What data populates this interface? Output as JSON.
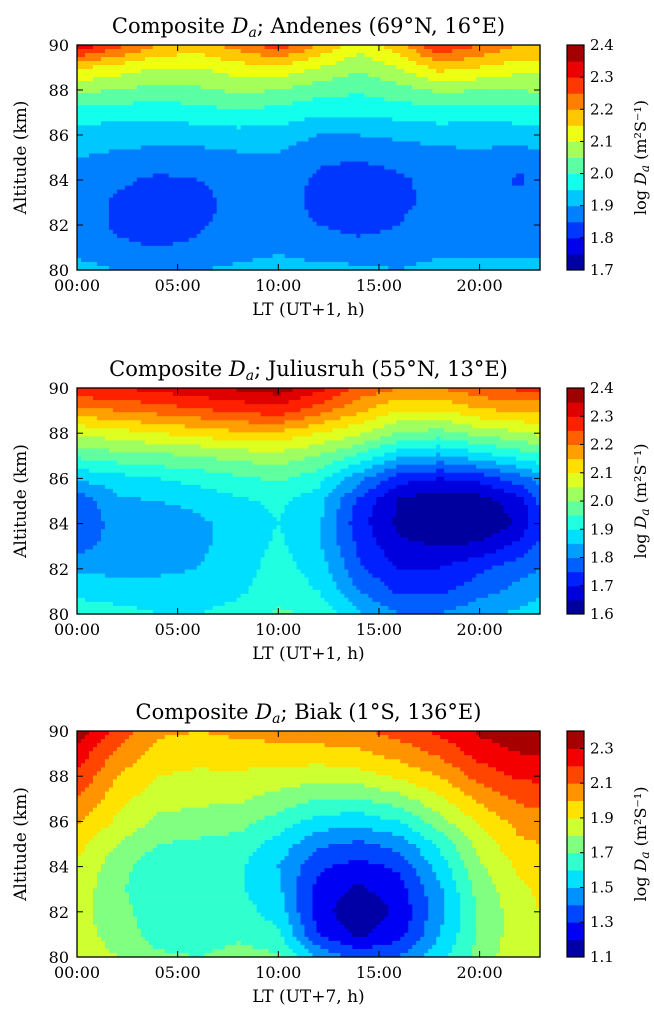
{
  "chart_data": [
    {
      "type": "heatmap",
      "title_prefix": "Composite ",
      "title_var": "D",
      "title_var_sub": "a",
      "title_suffix": "; Andenes (69°N, 16°E)",
      "xlabel": "LT (UT+1, h)",
      "ylabel": "Altitude (km)",
      "xlim": [
        0,
        23
      ],
      "ylim": [
        80,
        90
      ],
      "x_ticks": [
        0,
        5,
        10,
        15,
        20
      ],
      "x_tick_labels": [
        "00:00",
        "05:00",
        "10:00",
        "15:00",
        "20:00"
      ],
      "y_ticks": [
        80,
        82,
        84,
        86,
        88,
        90
      ],
      "colorbar": {
        "label_prefix": "log ",
        "label_var": "D",
        "label_var_sub": "a",
        "label_units": " (m²S⁻¹)",
        "min": 1.7,
        "max": 2.4,
        "ticks": [
          1.7,
          1.8,
          1.9,
          2.0,
          2.1,
          2.2,
          2.3,
          2.4
        ],
        "levels": 14
      },
      "grid_x": [
        0,
        2,
        4,
        6,
        8,
        10,
        12,
        14,
        16,
        18,
        20,
        22,
        23
      ],
      "grid_y": [
        80,
        81,
        82,
        83,
        84,
        85,
        86,
        87,
        88,
        89,
        90
      ],
      "values": [
        [
          1.92,
          1.9,
          1.9,
          1.9,
          1.91,
          1.92,
          1.91,
          1.91,
          1.9,
          1.92,
          1.91,
          1.92,
          1.92
        ],
        [
          1.88,
          1.86,
          1.85,
          1.86,
          1.88,
          1.89,
          1.88,
          1.87,
          1.87,
          1.88,
          1.89,
          1.88,
          1.88
        ],
        [
          1.88,
          1.84,
          1.82,
          1.84,
          1.88,
          1.88,
          1.85,
          1.83,
          1.85,
          1.88,
          1.88,
          1.87,
          1.88
        ],
        [
          1.88,
          1.84,
          1.82,
          1.82,
          1.88,
          1.88,
          1.83,
          1.8,
          1.84,
          1.86,
          1.88,
          1.87,
          1.88
        ],
        [
          1.88,
          1.86,
          1.84,
          1.85,
          1.88,
          1.88,
          1.84,
          1.81,
          1.84,
          1.87,
          1.88,
          1.84,
          1.88
        ],
        [
          1.9,
          1.89,
          1.88,
          1.88,
          1.89,
          1.89,
          1.86,
          1.86,
          1.87,
          1.88,
          1.89,
          1.87,
          1.89
        ],
        [
          1.93,
          1.92,
          1.92,
          1.92,
          1.93,
          1.93,
          1.9,
          1.9,
          1.91,
          1.92,
          1.92,
          1.92,
          1.93
        ],
        [
          1.98,
          1.97,
          1.97,
          1.98,
          1.99,
          1.98,
          1.96,
          1.96,
          1.97,
          1.98,
          1.97,
          1.98,
          1.98
        ],
        [
          2.06,
          2.05,
          2.03,
          2.04,
          2.06,
          2.05,
          2.02,
          2.01,
          2.03,
          2.06,
          2.05,
          2.05,
          2.06
        ],
        [
          2.16,
          2.13,
          2.1,
          2.1,
          2.13,
          2.14,
          2.1,
          2.06,
          2.1,
          2.17,
          2.15,
          2.12,
          2.12
        ],
        [
          2.34,
          2.27,
          2.2,
          2.18,
          2.22,
          2.28,
          2.2,
          2.12,
          2.18,
          2.3,
          2.25,
          2.2,
          2.2
        ]
      ]
    },
    {
      "type": "heatmap",
      "title_prefix": "Composite ",
      "title_var": "D",
      "title_var_sub": "a",
      "title_suffix": "; Juliusruh (55°N, 13°E)",
      "xlabel": "LT (UT+1, h)",
      "ylabel": "Altitude (km)",
      "xlim": [
        0,
        23
      ],
      "ylim": [
        80,
        90
      ],
      "x_ticks": [
        0,
        5,
        10,
        15,
        20
      ],
      "x_tick_labels": [
        "00:00",
        "05:00",
        "10:00",
        "15:00",
        "20:00"
      ],
      "y_ticks": [
        80,
        82,
        84,
        86,
        88,
        90
      ],
      "colorbar": {
        "label_prefix": "log ",
        "label_var": "D",
        "label_var_sub": "a",
        "label_units": " (m²S⁻¹)",
        "min": 1.6,
        "max": 2.4,
        "ticks": [
          1.6,
          1.7,
          1.8,
          1.9,
          2.0,
          2.1,
          2.2,
          2.3,
          2.4
        ],
        "levels": 16
      },
      "grid_x": [
        0,
        2,
        4,
        6,
        8,
        10,
        12,
        14,
        16,
        18,
        20,
        22,
        23
      ],
      "grid_y": [
        80,
        81,
        82,
        83,
        84,
        85,
        86,
        87,
        88,
        89,
        90
      ],
      "values": [
        [
          1.94,
          1.92,
          1.9,
          1.9,
          1.92,
          1.96,
          1.94,
          1.86,
          1.8,
          1.8,
          1.84,
          1.86,
          1.88
        ],
        [
          1.88,
          1.87,
          1.87,
          1.87,
          1.89,
          1.93,
          1.9,
          1.8,
          1.74,
          1.74,
          1.78,
          1.82,
          1.84
        ],
        [
          1.84,
          1.84,
          1.84,
          1.85,
          1.88,
          1.92,
          1.88,
          1.76,
          1.7,
          1.7,
          1.74,
          1.78,
          1.8
        ],
        [
          1.78,
          1.82,
          1.84,
          1.84,
          1.87,
          1.91,
          1.86,
          1.74,
          1.66,
          1.65,
          1.66,
          1.72,
          1.76
        ],
        [
          1.76,
          1.82,
          1.83,
          1.84,
          1.87,
          1.9,
          1.86,
          1.72,
          1.64,
          1.61,
          1.6,
          1.66,
          1.74
        ],
        [
          1.76,
          1.84,
          1.85,
          1.86,
          1.89,
          1.91,
          1.87,
          1.74,
          1.64,
          1.61,
          1.62,
          1.68,
          1.76
        ],
        [
          1.86,
          1.88,
          1.9,
          1.92,
          1.94,
          1.96,
          1.92,
          1.82,
          1.72,
          1.7,
          1.72,
          1.78,
          1.82
        ],
        [
          1.96,
          1.98,
          1.99,
          2.0,
          2.02,
          2.03,
          2.0,
          1.94,
          1.86,
          1.84,
          1.88,
          1.92,
          1.94
        ],
        [
          2.06,
          2.08,
          2.1,
          2.12,
          2.14,
          2.14,
          2.1,
          2.06,
          2.0,
          1.98,
          2.02,
          2.04,
          2.06
        ],
        [
          2.18,
          2.2,
          2.22,
          2.24,
          2.26,
          2.28,
          2.22,
          2.16,
          2.1,
          2.1,
          2.14,
          2.16,
          2.16
        ],
        [
          2.3,
          2.3,
          2.32,
          2.34,
          2.36,
          2.38,
          2.32,
          2.24,
          2.2,
          2.2,
          2.24,
          2.26,
          2.26
        ]
      ]
    },
    {
      "type": "heatmap",
      "title_prefix": "Composite ",
      "title_var": "D",
      "title_var_sub": "a",
      "title_suffix": "; Biak (1°S, 136°E)",
      "xlabel": "LT (UT+7, h)",
      "ylabel": "Altitude (km)",
      "xlim": [
        0,
        23
      ],
      "ylim": [
        80,
        90
      ],
      "x_ticks": [
        0,
        5,
        10,
        15,
        20
      ],
      "x_tick_labels": [
        "00:00",
        "05:00",
        "10:00",
        "15:00",
        "20:00"
      ],
      "y_ticks": [
        80,
        82,
        84,
        86,
        88,
        90
      ],
      "colorbar": {
        "label_prefix": "log ",
        "label_var": "D",
        "label_var_sub": "a",
        "label_units": " (m²S⁻¹)",
        "min": 1.1,
        "max": 2.4,
        "ticks": [
          1.1,
          1.3,
          1.5,
          1.7,
          1.9,
          2.1,
          2.3
        ],
        "levels": 13
      },
      "grid_x": [
        0,
        2,
        4,
        6,
        8,
        10,
        12,
        14,
        16,
        18,
        20,
        22,
        23
      ],
      "grid_y": [
        80,
        81,
        82,
        83,
        84,
        85,
        86,
        87,
        88,
        89,
        90
      ],
      "values": [
        [
          1.86,
          1.8,
          1.72,
          1.7,
          1.74,
          1.72,
          1.48,
          1.36,
          1.4,
          1.56,
          1.74,
          1.88,
          1.9
        ],
        [
          1.84,
          1.76,
          1.66,
          1.64,
          1.68,
          1.62,
          1.3,
          1.18,
          1.26,
          1.5,
          1.72,
          1.86,
          1.9
        ],
        [
          1.84,
          1.74,
          1.64,
          1.62,
          1.64,
          1.56,
          1.24,
          1.12,
          1.22,
          1.46,
          1.72,
          1.86,
          1.9
        ],
        [
          1.86,
          1.72,
          1.62,
          1.6,
          1.62,
          1.52,
          1.26,
          1.18,
          1.26,
          1.48,
          1.74,
          1.88,
          1.92
        ],
        [
          1.88,
          1.74,
          1.64,
          1.62,
          1.62,
          1.5,
          1.32,
          1.26,
          1.32,
          1.54,
          1.78,
          1.92,
          1.96
        ],
        [
          1.94,
          1.8,
          1.7,
          1.68,
          1.66,
          1.56,
          1.42,
          1.38,
          1.44,
          1.62,
          1.84,
          1.98,
          2.0
        ],
        [
          2.02,
          1.88,
          1.78,
          1.76,
          1.74,
          1.66,
          1.56,
          1.54,
          1.6,
          1.76,
          1.92,
          2.04,
          2.06
        ],
        [
          2.1,
          1.94,
          1.84,
          1.82,
          1.82,
          1.76,
          1.7,
          1.7,
          1.76,
          1.88,
          2.02,
          2.12,
          2.14
        ],
        [
          2.18,
          2.0,
          1.9,
          1.88,
          1.88,
          1.86,
          1.84,
          1.86,
          1.92,
          2.0,
          2.14,
          2.22,
          2.22
        ],
        [
          2.26,
          2.08,
          1.96,
          1.94,
          1.96,
          1.96,
          1.96,
          1.98,
          2.04,
          2.12,
          2.24,
          2.3,
          2.3
        ],
        [
          2.36,
          2.16,
          2.02,
          2.0,
          2.02,
          2.04,
          2.06,
          2.08,
          2.14,
          2.22,
          2.32,
          2.38,
          2.38
        ]
      ]
    }
  ]
}
